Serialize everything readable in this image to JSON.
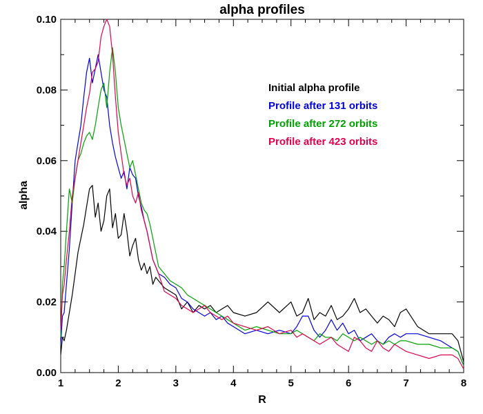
{
  "chart_data": {
    "type": "line",
    "title": "alpha profiles",
    "xlabel": "R",
    "ylabel": "alpha",
    "xlim": [
      1,
      8
    ],
    "ylim": [
      0,
      0.1
    ],
    "xticks": [
      "1",
      "2",
      "3",
      "4",
      "5",
      "6",
      "7",
      "8"
    ],
    "yticks": [
      "0.00",
      "0.02",
      "0.04",
      "0.06",
      "0.08",
      "0.10"
    ],
    "grid": false,
    "legend_position": "top-right",
    "series": [
      {
        "name": "Initial alpha profile",
        "color": "#000000",
        "x": [
          1.0,
          1.03,
          1.06,
          1.1,
          1.15,
          1.2,
          1.25,
          1.3,
          1.35,
          1.4,
          1.45,
          1.5,
          1.55,
          1.6,
          1.65,
          1.7,
          1.75,
          1.8,
          1.85,
          1.9,
          1.95,
          2.0,
          2.05,
          2.1,
          2.15,
          2.2,
          2.25,
          2.3,
          2.35,
          2.4,
          2.45,
          2.5,
          2.55,
          2.6,
          2.65,
          2.7,
          2.8,
          2.9,
          3.0,
          3.1,
          3.2,
          3.3,
          3.4,
          3.5,
          3.6,
          3.7,
          3.8,
          3.9,
          4.0,
          4.2,
          4.4,
          4.6,
          4.8,
          5.0,
          5.1,
          5.2,
          5.3,
          5.4,
          5.5,
          5.6,
          5.7,
          5.8,
          5.9,
          6.0,
          6.1,
          6.2,
          6.3,
          6.4,
          6.5,
          6.6,
          6.7,
          6.8,
          6.9,
          7.0,
          7.2,
          7.4,
          7.6,
          7.8,
          7.9,
          8.0
        ],
        "y": [
          0.005,
          0.01,
          0.009,
          0.012,
          0.017,
          0.022,
          0.028,
          0.034,
          0.038,
          0.042,
          0.047,
          0.052,
          0.053,
          0.044,
          0.048,
          0.04,
          0.043,
          0.05,
          0.052,
          0.041,
          0.045,
          0.038,
          0.039,
          0.045,
          0.04,
          0.033,
          0.036,
          0.038,
          0.032,
          0.029,
          0.031,
          0.028,
          0.03,
          0.025,
          0.027,
          0.026,
          0.024,
          0.023,
          0.022,
          0.018,
          0.02,
          0.017,
          0.019,
          0.018,
          0.019,
          0.017,
          0.018,
          0.019,
          0.017,
          0.016,
          0.017,
          0.02,
          0.017,
          0.02,
          0.016,
          0.017,
          0.021,
          0.015,
          0.017,
          0.016,
          0.019,
          0.015,
          0.016,
          0.018,
          0.021,
          0.017,
          0.018,
          0.016,
          0.014,
          0.016,
          0.015,
          0.013,
          0.017,
          0.018,
          0.013,
          0.011,
          0.011,
          0.011,
          0.009,
          0.003
        ]
      },
      {
        "name": "Profile after 131 orbits",
        "color": "#0000dd",
        "x": [
          1.0,
          1.03,
          1.06,
          1.1,
          1.15,
          1.2,
          1.25,
          1.3,
          1.35,
          1.4,
          1.45,
          1.5,
          1.55,
          1.6,
          1.65,
          1.7,
          1.75,
          1.8,
          1.85,
          1.9,
          1.95,
          2.0,
          2.05,
          2.1,
          2.15,
          2.2,
          2.25,
          2.3,
          2.35,
          2.4,
          2.45,
          2.5,
          2.55,
          2.6,
          2.65,
          2.7,
          2.8,
          2.9,
          3.0,
          3.1,
          3.2,
          3.3,
          3.4,
          3.5,
          3.6,
          3.7,
          3.8,
          3.9,
          4.0,
          4.2,
          4.4,
          4.6,
          4.8,
          5.0,
          5.1,
          5.2,
          5.3,
          5.4,
          5.5,
          5.6,
          5.7,
          5.8,
          5.9,
          6.0,
          6.1,
          6.2,
          6.3,
          6.4,
          6.5,
          6.6,
          6.7,
          6.8,
          6.9,
          7.0,
          7.2,
          7.4,
          7.6,
          7.8,
          7.9,
          8.0
        ],
        "y": [
          0.008,
          0.016,
          0.017,
          0.025,
          0.035,
          0.048,
          0.06,
          0.065,
          0.07,
          0.078,
          0.085,
          0.089,
          0.082,
          0.086,
          0.09,
          0.085,
          0.08,
          0.078,
          0.07,
          0.065,
          0.061,
          0.058,
          0.055,
          0.057,
          0.052,
          0.058,
          0.056,
          0.055,
          0.05,
          0.047,
          0.043,
          0.04,
          0.036,
          0.032,
          0.03,
          0.028,
          0.027,
          0.025,
          0.024,
          0.021,
          0.02,
          0.018,
          0.017,
          0.016,
          0.017,
          0.015,
          0.016,
          0.014,
          0.013,
          0.011,
          0.012,
          0.011,
          0.012,
          0.011,
          0.013,
          0.016,
          0.016,
          0.012,
          0.01,
          0.012,
          0.015,
          0.012,
          0.014,
          0.011,
          0.012,
          0.009,
          0.01,
          0.011,
          0.009,
          0.008,
          0.01,
          0.011,
          0.01,
          0.011,
          0.011,
          0.01,
          0.009,
          0.007,
          0.006,
          0.002
        ]
      },
      {
        "name": "Profile after 272 orbits",
        "color": "#00a000",
        "x": [
          1.0,
          1.03,
          1.06,
          1.1,
          1.15,
          1.2,
          1.25,
          1.3,
          1.35,
          1.4,
          1.45,
          1.5,
          1.55,
          1.6,
          1.65,
          1.7,
          1.75,
          1.8,
          1.85,
          1.9,
          1.95,
          2.0,
          2.05,
          2.1,
          2.15,
          2.2,
          2.25,
          2.3,
          2.35,
          2.4,
          2.45,
          2.5,
          2.55,
          2.6,
          2.65,
          2.7,
          2.8,
          2.9,
          3.0,
          3.1,
          3.2,
          3.3,
          3.4,
          3.5,
          3.6,
          3.7,
          3.8,
          3.9,
          4.0,
          4.2,
          4.4,
          4.6,
          4.8,
          5.0,
          5.1,
          5.2,
          5.3,
          5.4,
          5.5,
          5.6,
          5.7,
          5.8,
          5.9,
          6.0,
          6.1,
          6.2,
          6.3,
          6.4,
          6.5,
          6.6,
          6.7,
          6.8,
          6.9,
          7.0,
          7.2,
          7.4,
          7.6,
          7.8,
          7.9,
          8.0
        ],
        "y": [
          0.01,
          0.025,
          0.03,
          0.04,
          0.052,
          0.048,
          0.055,
          0.06,
          0.062,
          0.065,
          0.067,
          0.068,
          0.066,
          0.07,
          0.075,
          0.08,
          0.082,
          0.075,
          0.085,
          0.092,
          0.085,
          0.075,
          0.07,
          0.066,
          0.062,
          0.058,
          0.06,
          0.056,
          0.052,
          0.048,
          0.046,
          0.045,
          0.042,
          0.038,
          0.034,
          0.03,
          0.028,
          0.026,
          0.025,
          0.024,
          0.022,
          0.021,
          0.02,
          0.019,
          0.018,
          0.017,
          0.016,
          0.015,
          0.014,
          0.012,
          0.013,
          0.012,
          0.011,
          0.011,
          0.012,
          0.011,
          0.01,
          0.009,
          0.011,
          0.01,
          0.01,
          0.009,
          0.011,
          0.01,
          0.009,
          0.01,
          0.009,
          0.008,
          0.009,
          0.008,
          0.009,
          0.008,
          0.009,
          0.009,
          0.008,
          0.008,
          0.007,
          0.007,
          0.006,
          0.002
        ]
      },
      {
        "name": "Profile after 423 orbits",
        "color": "#e0004c",
        "x": [
          1.0,
          1.03,
          1.06,
          1.1,
          1.15,
          1.2,
          1.25,
          1.3,
          1.35,
          1.4,
          1.45,
          1.5,
          1.55,
          1.6,
          1.65,
          1.7,
          1.75,
          1.8,
          1.85,
          1.9,
          1.95,
          2.0,
          2.05,
          2.1,
          2.15,
          2.2,
          2.25,
          2.3,
          2.35,
          2.4,
          2.45,
          2.5,
          2.55,
          2.6,
          2.65,
          2.7,
          2.8,
          2.9,
          3.0,
          3.1,
          3.2,
          3.3,
          3.4,
          3.5,
          3.6,
          3.7,
          3.8,
          3.9,
          4.0,
          4.2,
          4.4,
          4.6,
          4.8,
          5.0,
          5.1,
          5.2,
          5.3,
          5.4,
          5.5,
          5.6,
          5.7,
          5.8,
          5.9,
          6.0,
          6.1,
          6.2,
          6.3,
          6.4,
          6.5,
          6.6,
          6.7,
          6.8,
          6.9,
          7.0,
          7.2,
          7.4,
          7.6,
          7.8,
          7.9,
          8.0
        ],
        "y": [
          0.012,
          0.022,
          0.025,
          0.032,
          0.04,
          0.05,
          0.055,
          0.06,
          0.065,
          0.07,
          0.075,
          0.079,
          0.085,
          0.086,
          0.088,
          0.095,
          0.098,
          0.1,
          0.098,
          0.09,
          0.078,
          0.068,
          0.062,
          0.056,
          0.053,
          0.055,
          0.05,
          0.048,
          0.051,
          0.046,
          0.043,
          0.04,
          0.036,
          0.032,
          0.03,
          0.028,
          0.023,
          0.022,
          0.021,
          0.019,
          0.018,
          0.017,
          0.018,
          0.019,
          0.017,
          0.016,
          0.015,
          0.016,
          0.014,
          0.013,
          0.012,
          0.013,
          0.011,
          0.012,
          0.01,
          0.011,
          0.01,
          0.009,
          0.008,
          0.009,
          0.01,
          0.008,
          0.007,
          0.006,
          0.01,
          0.009,
          0.007,
          0.006,
          0.009,
          0.007,
          0.006,
          0.008,
          0.007,
          0.006,
          0.005,
          0.004,
          0.005,
          0.005,
          0.004,
          0.001
        ]
      }
    ]
  }
}
